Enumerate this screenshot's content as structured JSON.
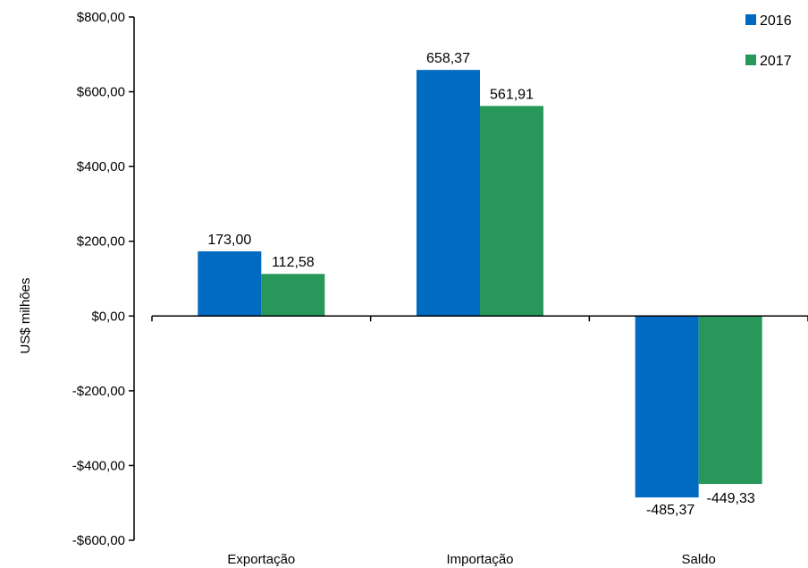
{
  "chart_data": {
    "type": "bar",
    "categories": [
      "Exportação",
      "Importação",
      "Saldo"
    ],
    "series": [
      {
        "name": "2016",
        "color": "#006bc0",
        "values": [
          173.0,
          658.37,
          -485.37
        ],
        "value_labels": [
          "173,00",
          "658,37",
          "-485,37"
        ]
      },
      {
        "name": "2017",
        "color": "#27975a",
        "values": [
          112.58,
          561.91,
          -449.33
        ],
        "value_labels": [
          "112,58",
          "561,91",
          "-449,33"
        ]
      }
    ],
    "ylabel": "US$ milhões",
    "ylim": [
      -600,
      800
    ],
    "yticks": [
      800,
      600,
      400,
      200,
      0,
      -200,
      -400,
      -600
    ],
    "ytick_labels": [
      "$800,00",
      "$600,00",
      "$400,00",
      "$200,00",
      "$0,00",
      "-$200,00",
      "-$400,00",
      "-$600,00"
    ],
    "legend_position": "top-right",
    "grid": false
  }
}
